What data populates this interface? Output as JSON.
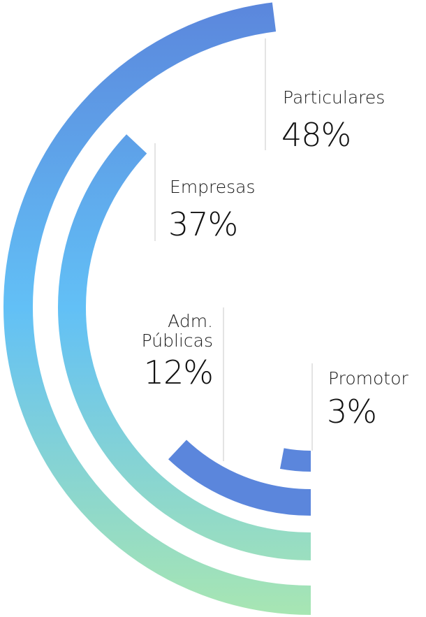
{
  "chart_data": {
    "type": "radial-bar",
    "categories": [
      "Particulares",
      "Empresas",
      "Adm. Públicas",
      "Promotor"
    ],
    "values": [
      48,
      37,
      12,
      3
    ],
    "value_labels": [
      "48%",
      "37%",
      "12%",
      "3%"
    ],
    "colors": [
      [
        "#5b86dc",
        "#62c0f6",
        "#a8e6b2"
      ],
      [
        "#5b86dc",
        "#62c0f6",
        "#a8e6b2"
      ],
      [
        "#5b86dc"
      ],
      [
        "#5b86dc"
      ]
    ]
  }
}
